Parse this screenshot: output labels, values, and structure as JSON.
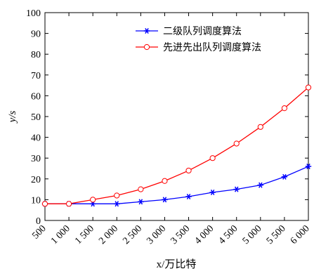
{
  "chart_data": {
    "type": "line",
    "xlabel": "x/万比特",
    "ylabel": "y/s",
    "xlim": [
      500,
      6000
    ],
    "ylim": [
      0,
      100
    ],
    "x": [
      500,
      1000,
      1500,
      2000,
      2500,
      3000,
      3500,
      4000,
      4500,
      5000,
      5500,
      6000
    ],
    "x_tick_labels": [
      "500",
      "1 000",
      "1 500",
      "2 000",
      "2 500",
      "3 000",
      "3 500",
      "4 000",
      "4 500",
      "5 000",
      "5 500",
      "6 000"
    ],
    "y_ticks": [
      0,
      10,
      20,
      30,
      40,
      50,
      60,
      70,
      80,
      90,
      100
    ],
    "y_tick_labels": [
      "0",
      "10",
      "20",
      "30",
      "40",
      "50",
      "60",
      "70",
      "80",
      "90",
      "100"
    ],
    "grid": false,
    "legend_position": "top-right",
    "series": [
      {
        "name": "二级队列调度算法",
        "color": "#0000ff",
        "marker": "asterisk",
        "values": [
          8,
          8,
          8,
          8,
          9,
          10,
          11.5,
          13.5,
          15,
          17,
          21,
          26
        ]
      },
      {
        "name": "先进先出队列调度算法",
        "color": "#ff0000",
        "marker": "circle",
        "values": [
          8,
          8,
          10,
          12,
          15,
          19,
          24,
          30,
          37,
          45,
          54,
          64
        ]
      }
    ]
  }
}
